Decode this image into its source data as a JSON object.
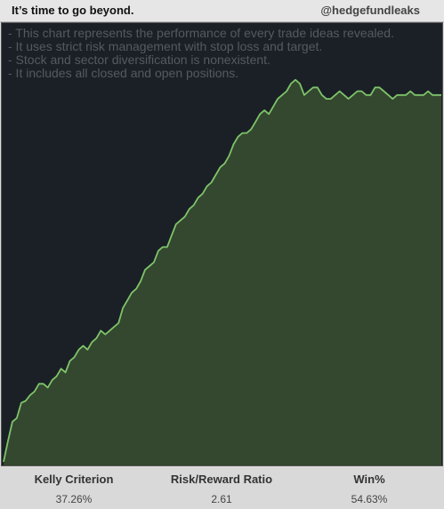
{
  "header": {
    "title": "It’s time to go beyond.",
    "handle": "@hedgefundleaks"
  },
  "notes": [
    "- This chart represents the performance of every trade ideas revealed.",
    "- It uses strict risk management with stop loss and target.",
    "- Stock and sector diversification is nonexistent.",
    "- It includes all closed and open positions."
  ],
  "stats": [
    {
      "label": "Kelly Criterion",
      "value": "37.26%"
    },
    {
      "label": "Risk/Reward Ratio",
      "value": "2.61"
    },
    {
      "label": "Win%",
      "value": "54.63%"
    }
  ],
  "colors": {
    "background": "#1b2026",
    "line": "#7ec46a",
    "fill": "#34472f"
  },
  "chart_data": {
    "type": "area",
    "title": "",
    "xlabel": "",
    "ylabel": "",
    "grid": false,
    "ylim": [
      0,
      100
    ],
    "x": [
      0,
      1,
      2,
      3,
      4,
      5,
      6,
      7,
      8,
      9,
      10,
      11,
      12,
      13,
      14,
      15,
      16,
      17,
      18,
      19,
      20,
      21,
      22,
      23,
      24,
      25,
      26,
      27,
      28,
      29,
      30,
      31,
      32,
      33,
      34,
      35,
      36,
      37,
      38,
      39,
      40,
      41,
      42,
      43,
      44,
      45,
      46,
      47,
      48,
      49,
      50,
      51,
      52,
      53,
      54,
      55,
      56,
      57,
      58,
      59,
      60,
      61,
      62,
      63,
      64,
      65,
      66,
      67,
      68,
      69,
      70,
      71,
      72,
      73,
      74,
      75,
      76,
      77,
      78,
      79,
      80,
      81,
      82,
      83,
      84,
      85,
      86,
      87,
      88,
      89,
      90,
      91,
      92,
      93,
      94,
      95,
      96,
      97,
      98,
      99
    ],
    "series": [
      {
        "values": [
          0.5,
          6,
          11,
          12,
          16,
          16.5,
          18,
          19,
          21,
          21,
          20,
          22,
          23,
          25,
          24,
          27,
          28,
          30,
          31,
          30,
          32,
          33,
          35,
          34,
          35,
          36,
          37,
          41,
          43,
          45,
          46,
          48,
          51,
          52,
          53,
          56,
          57,
          57,
          60,
          63,
          64,
          65,
          67,
          68,
          70,
          71,
          73,
          74,
          76,
          78,
          79,
          81,
          84,
          86,
          87,
          87,
          88,
          90,
          92,
          93,
          92,
          94,
          96,
          97,
          98,
          100,
          101,
          100,
          97,
          98,
          99,
          99,
          97,
          96,
          96,
          97,
          98,
          97,
          96,
          97,
          98,
          98,
          97,
          97,
          99,
          99,
          98,
          97,
          96,
          97,
          97,
          97,
          98,
          97,
          97,
          97,
          98,
          97,
          97,
          97
        ]
      }
    ]
  }
}
